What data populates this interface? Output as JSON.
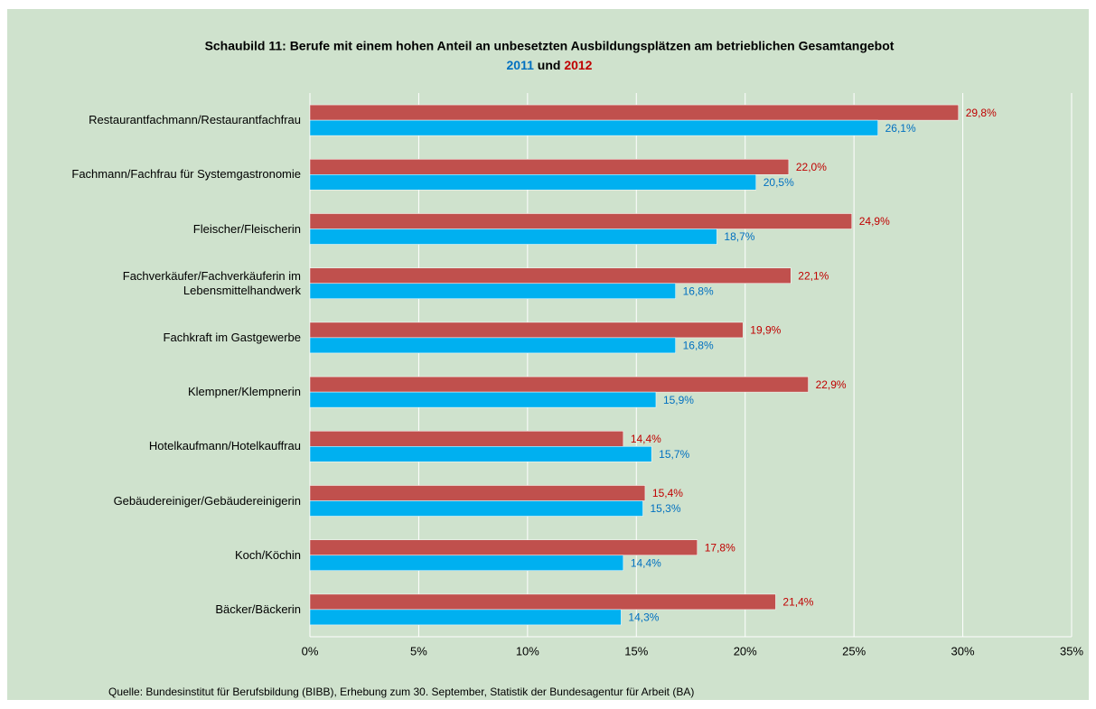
{
  "chart_data": {
    "type": "hbar",
    "title": "Schaubild 11: Berufe mit einem hohen Anteil an unbesetzten Ausbildungsplätzen am betrieblichen Gesamtangebot",
    "legend_conjunction": "und",
    "categories": [
      "Restaurantfachmann/Restaurantfachfrau",
      "Fachmann/Fachfrau für Systemgastronomie",
      "Fleischer/Fleischerin",
      "Fachverkäufer/Fachverkäuferin im\nLebensmittelhandwerk",
      "Fachkraft im Gastgewerbe",
      "Klempner/Klempnerin",
      "Hotelkaufmann/Hotelkauffrau",
      "Gebäudereiniger/Gebäudereinigerin",
      "Koch/Köchin",
      "Bäcker/Bäckerin"
    ],
    "series": [
      {
        "name": "2011",
        "color": "#00b0f0",
        "label_color": "#0070c0",
        "values": [
          26.1,
          20.5,
          18.7,
          16.8,
          16.8,
          15.9,
          15.7,
          15.3,
          14.4,
          14.3
        ],
        "value_labels": [
          "26,1%",
          "20,5%",
          "18,7%",
          "16,8%",
          "16,8%",
          "15,9%",
          "15,7%",
          "15,3%",
          "14,4%",
          "14,3%"
        ]
      },
      {
        "name": "2012",
        "color": "#c0504d",
        "label_color": "#c00000",
        "values": [
          29.8,
          22.0,
          24.9,
          22.1,
          19.9,
          22.9,
          14.4,
          15.4,
          17.8,
          21.4
        ],
        "value_labels": [
          "29,8%",
          "22,0%",
          "24,9%",
          "22,1%",
          "19,9%",
          "22,9%",
          "14,4%",
          "15,4%",
          "17,8%",
          "21,4%"
        ]
      }
    ],
    "xlim": [
      0,
      35
    ],
    "xticks": [
      {
        "value": 0,
        "label": "0%"
      },
      {
        "value": 5,
        "label": "5%"
      },
      {
        "value": 10,
        "label": "10%"
      },
      {
        "value": 15,
        "label": "15%"
      },
      {
        "value": 20,
        "label": "20%"
      },
      {
        "value": 25,
        "label": "25%"
      },
      {
        "value": 30,
        "label": "30%"
      },
      {
        "value": 35,
        "label": "35%"
      }
    ],
    "grid": true,
    "source": "Quelle: Bundesinstitut für Berufsbildung (BIBB), Erhebung zum 30. September, Statistik der Bundesagentur für Arbeit (BA)"
  }
}
